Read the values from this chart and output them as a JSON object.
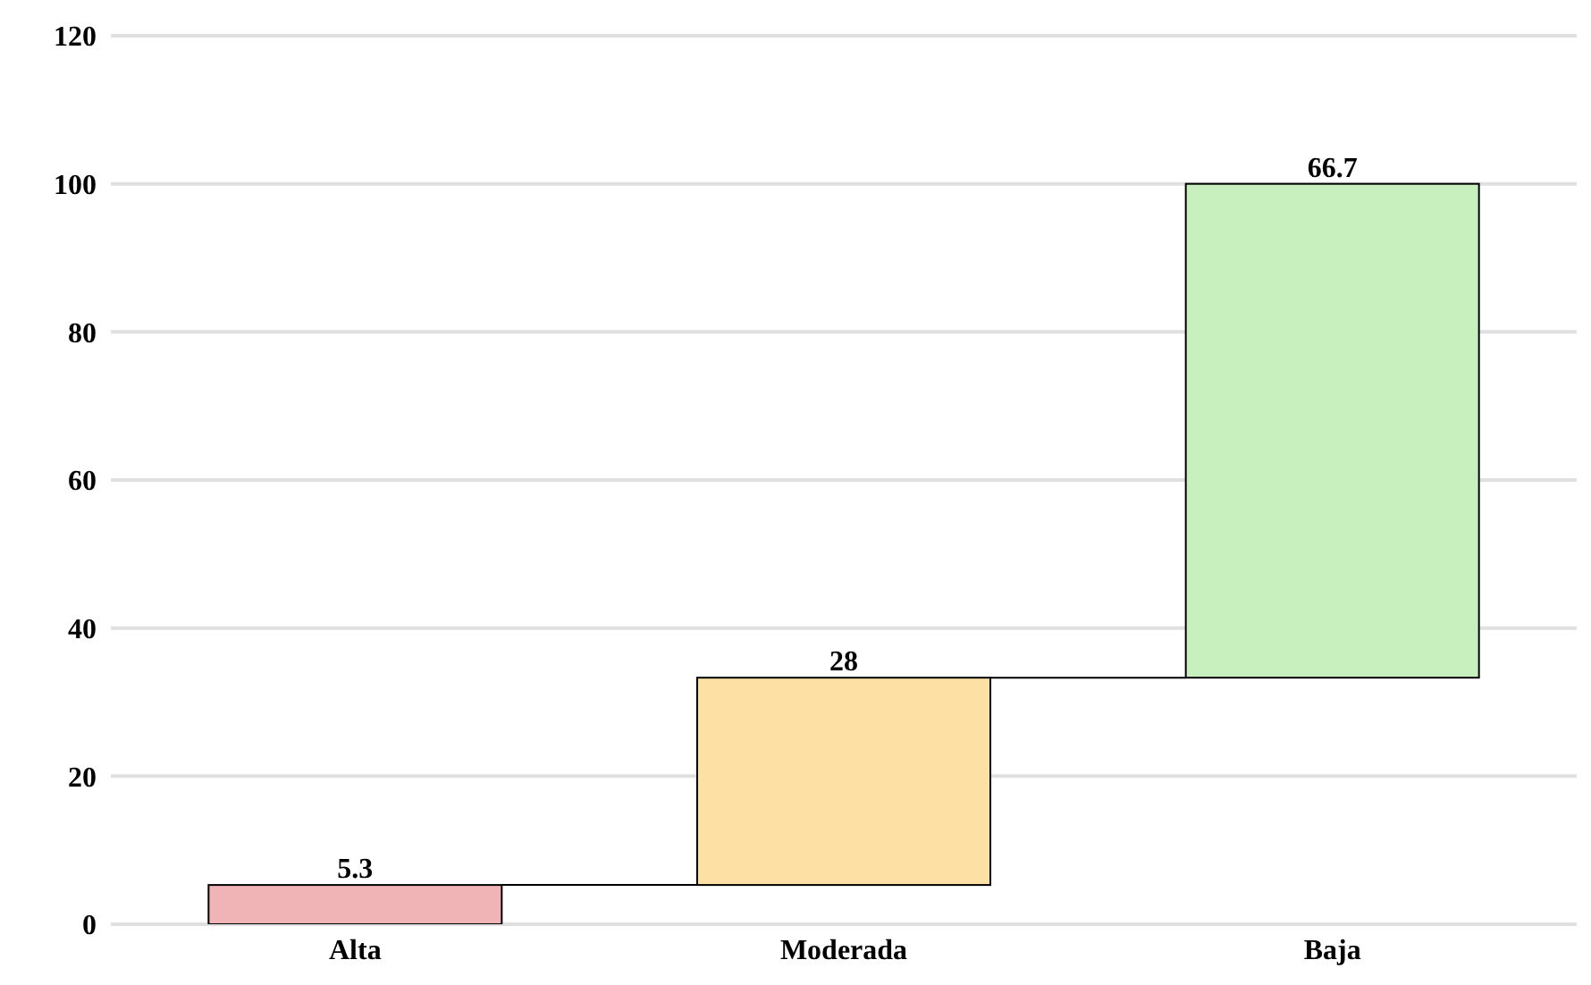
{
  "chart_data": {
    "type": "bar",
    "categories": [
      "Alta",
      "Moderada",
      "Baja"
    ],
    "values": [
      5.3,
      28,
      66.7
    ],
    "base": [
      0,
      5.3,
      33.3
    ],
    "colors": [
      "#f0b4b6",
      "#fde0a4",
      "#c8f0bf"
    ],
    "ylim": [
      0,
      120
    ],
    "yticks": [
      0,
      20,
      40,
      60,
      80,
      100,
      120
    ],
    "grid": "y",
    "data_labels": true
  }
}
